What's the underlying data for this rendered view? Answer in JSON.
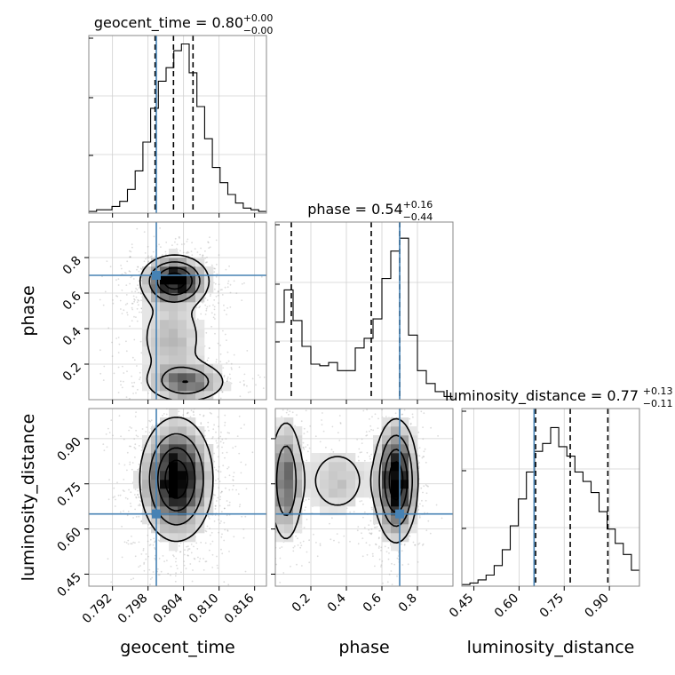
{
  "chart_data": {
    "type": "corner",
    "parameters": [
      {
        "key": "geocent_time",
        "label": "geocent_time",
        "range": [
          0.788,
          0.818
        ],
        "ticks": [
          0.792,
          0.798,
          0.804,
          0.81,
          0.816
        ],
        "tick_labels": [
          "0.792",
          "0.798",
          "0.804",
          "0.810",
          "0.816"
        ],
        "median": 0.8,
        "title": {
          "prefix": "geocent_time = 0.80",
          "sup": "+0.00",
          "sub": "−0.00"
        },
        "quantiles": [
          0.7992,
          0.8023,
          0.8056
        ],
        "truth": 0.7994,
        "hist": [
          1,
          2,
          2,
          4,
          7,
          14,
          25,
          42,
          62,
          78,
          86,
          96,
          100,
          83,
          63,
          44,
          27,
          18,
          11,
          6,
          3,
          2,
          1
        ],
        "hist_ylim": [
          0,
          105
        ]
      },
      {
        "key": "phase",
        "label": "phase",
        "range": [
          0.0,
          1.0
        ],
        "ticks": [
          0.2,
          0.4,
          0.6,
          0.8
        ],
        "tick_labels": [
          "0.2",
          "0.4",
          "0.6",
          "0.8"
        ],
        "median": 0.54,
        "title": {
          "prefix": "phase = 0.54",
          "sup": "+0.16",
          "sub": "−0.44"
        },
        "quantiles": [
          0.09,
          0.54,
          0.7
        ],
        "truth": 0.7,
        "hist": [
          48,
          68,
          49,
          33,
          22,
          21,
          23,
          18,
          18,
          32,
          38,
          50,
          75,
          92,
          100,
          40,
          18,
          10,
          5,
          2
        ],
        "hist_ylim": [
          0,
          110
        ]
      },
      {
        "key": "luminosity_distance",
        "label": "luminosity_distance",
        "range": [
          0.41,
          1.0
        ],
        "ticks": [
          0.45,
          0.6,
          0.75,
          0.9
        ],
        "tick_labels": [
          "0.45",
          "0.60",
          "0.75",
          "0.90"
        ],
        "median": 0.77,
        "title": {
          "prefix": "luminosity_distance = 0.77",
          "sup": "+0.13",
          "sub": "−0.11"
        },
        "quantiles": [
          0.655,
          0.77,
          0.895
        ],
        "truth": 0.65,
        "hist": [
          1,
          2,
          4,
          7,
          13,
          23,
          38,
          55,
          72,
          85,
          90,
          100,
          88,
          82,
          72,
          66,
          59,
          47,
          36,
          27,
          20,
          10
        ],
        "hist_ylim": [
          0,
          112
        ]
      }
    ],
    "pairs": [
      {
        "x": "geocent_time",
        "y": "phase"
      },
      {
        "x": "geocent_time",
        "y": "luminosity_distance"
      },
      {
        "x": "phase",
        "y": "luminosity_distance"
      }
    ],
    "truth_color": "#4682b4",
    "quantile_style": "dashed",
    "grid": true
  }
}
